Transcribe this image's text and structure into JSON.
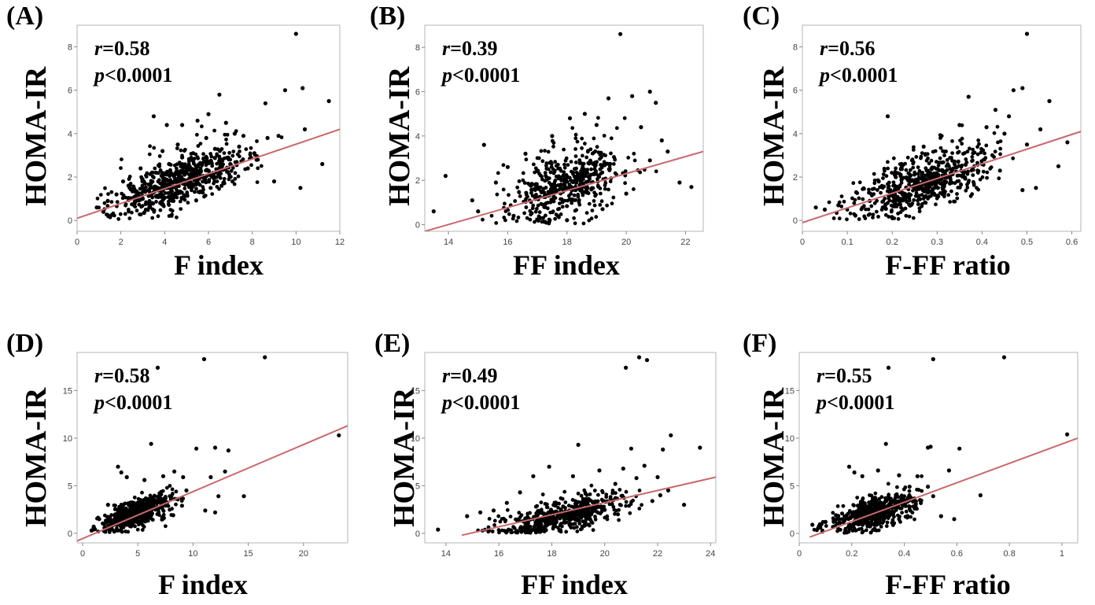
{
  "chart_data": [
    {
      "type": "scatter",
      "panel_label": "(A)",
      "xlabel": "F index",
      "ylabel": "HOMA-IR",
      "r_prefix": "r",
      "r_text": "=0.58",
      "p_prefix": "p",
      "p_text": "<0.0001",
      "xlim": [
        0,
        12
      ],
      "ylim": [
        -0.5,
        9.0
      ],
      "xticks": [
        0,
        2,
        4,
        6,
        8,
        10,
        12
      ],
      "yticks": [
        0,
        2,
        4,
        6,
        8
      ],
      "trend": {
        "x": [
          0,
          12
        ],
        "y": [
          0.1,
          4.2
        ]
      },
      "points": [
        [
          10.0,
          8.6
        ],
        [
          3.5,
          4.8
        ],
        [
          9.5,
          6.0
        ],
        [
          10.3,
          6.1
        ],
        [
          11.5,
          5.5
        ],
        [
          6.5,
          5.8
        ],
        [
          8.6,
          5.4
        ],
        [
          9.2,
          3.9
        ],
        [
          10.4,
          4.2
        ],
        [
          9.0,
          1.8
        ],
        [
          10.2,
          1.5
        ],
        [
          11.2,
          2.6
        ],
        [
          7.6,
          3.9
        ],
        [
          8.7,
          3.8
        ],
        [
          6.0,
          4.9
        ],
        [
          5.5,
          4.6
        ],
        [
          4.8,
          4.4
        ],
        [
          4.1,
          4.4
        ],
        [
          6.8,
          4.5
        ],
        [
          7.2,
          4.0
        ],
        [
          8.2,
          2.8
        ],
        [
          7.8,
          2.4
        ],
        [
          5.9,
          3.8
        ],
        [
          4.6,
          3.5
        ],
        [
          3.9,
          3.2
        ],
        [
          2.9,
          2.4
        ],
        [
          2.1,
          1.8
        ],
        [
          1.4,
          0.9
        ],
        [
          0.9,
          0.6
        ],
        [
          1.2,
          0.4
        ],
        [
          1.8,
          1.2
        ],
        [
          2.4,
          1.5
        ],
        [
          3.1,
          1.7
        ],
        [
          3.6,
          2.2
        ],
        [
          4.2,
          2.6
        ],
        [
          4.8,
          2.9
        ],
        [
          5.3,
          3.1
        ],
        [
          5.8,
          2.7
        ],
        [
          6.3,
          3.3
        ],
        [
          6.9,
          2.9
        ],
        [
          7.4,
          3.4
        ],
        [
          8.1,
          3.1
        ],
        [
          3.3,
          0.6
        ],
        [
          3.8,
          0.8
        ],
        [
          4.4,
          0.9
        ],
        [
          4.9,
          1.1
        ],
        [
          5.6,
          1.3
        ],
        [
          6.1,
          1.5
        ],
        [
          6.6,
          1.6
        ],
        [
          7.1,
          1.8
        ],
        [
          2.6,
          0.7
        ],
        [
          3.0,
          1.0
        ],
        [
          3.5,
          1.3
        ],
        [
          4.0,
          1.6
        ],
        [
          4.5,
          1.9
        ],
        [
          5.0,
          2.2
        ],
        [
          5.5,
          2.0
        ],
        [
          6.0,
          2.3
        ],
        [
          6.5,
          2.1
        ],
        [
          7.0,
          2.6
        ]
      ],
      "cloud": {
        "seed": 11,
        "n": 600,
        "xmean": 4.7,
        "xsd": 1.5,
        "xmin": 0.6,
        "xmax": 9.5,
        "slope": 0.35,
        "intercept": 0.2,
        "ysd": 0.7,
        "ymin": 0.05
      }
    },
    {
      "type": "scatter",
      "panel_label": "(B)",
      "xlabel": "FF index",
      "ylabel": "HOMA-IR",
      "r_prefix": "r",
      "r_text": "=0.39",
      "p_prefix": "p",
      "p_text": "<0.0001",
      "xlim": [
        13.2,
        22.6
      ],
      "ylim": [
        -0.3,
        9.0
      ],
      "xticks": [
        14,
        16,
        18,
        20,
        22
      ],
      "yticks": [
        0,
        2,
        4,
        6,
        8
      ],
      "trend": {
        "x": [
          13.2,
          22.6
        ],
        "y": [
          -0.3,
          3.3
        ]
      },
      "points": [
        [
          19.8,
          8.6
        ],
        [
          20.8,
          6.0
        ],
        [
          20.2,
          5.8
        ],
        [
          19.4,
          5.7
        ],
        [
          21.0,
          5.5
        ],
        [
          18.6,
          5.0
        ],
        [
          18.1,
          4.8
        ],
        [
          15.2,
          3.6
        ],
        [
          13.9,
          2.2
        ],
        [
          13.5,
          0.6
        ],
        [
          22.2,
          1.7
        ],
        [
          21.8,
          1.9
        ],
        [
          20.5,
          4.4
        ],
        [
          21.2,
          3.8
        ],
        [
          19.0,
          4.5
        ],
        [
          17.5,
          4.0
        ],
        [
          16.6,
          3.2
        ],
        [
          16.0,
          2.6
        ],
        [
          15.6,
          1.9
        ],
        [
          14.8,
          1.1
        ],
        [
          15.0,
          0.6
        ],
        [
          16.2,
          0.4
        ],
        [
          17.1,
          0.3
        ],
        [
          18.0,
          0.2
        ],
        [
          19.2,
          0.7
        ],
        [
          20.0,
          1.4
        ],
        [
          20.8,
          2.9
        ],
        [
          21.4,
          3.3
        ]
      ],
      "cloud": {
        "seed": 23,
        "n": 500,
        "xmean": 18.0,
        "xsd": 0.95,
        "xmin": 15.0,
        "xmax": 21.5,
        "slope": 0.38,
        "intercept": -5.0,
        "ysd": 0.85,
        "ymin": 0.05
      }
    },
    {
      "type": "scatter",
      "panel_label": "(C)",
      "xlabel": "F-FF ratio",
      "ylabel": "HOMA-IR",
      "r_prefix": "r",
      "r_text": "=0.56",
      "p_prefix": "p",
      "p_text": "<0.0001",
      "xlim": [
        0,
        0.62
      ],
      "ylim": [
        -0.5,
        9.0
      ],
      "xticks": [
        0,
        0.1,
        0.2,
        0.3,
        0.4,
        0.5,
        0.6
      ],
      "yticks": [
        0,
        2,
        4,
        6,
        8
      ],
      "trend": {
        "x": [
          0,
          0.62
        ],
        "y": [
          -0.1,
          4.1
        ]
      },
      "points": [
        [
          0.5,
          8.6
        ],
        [
          0.47,
          6.0
        ],
        [
          0.49,
          6.1
        ],
        [
          0.55,
          5.5
        ],
        [
          0.59,
          3.6
        ],
        [
          0.57,
          2.5
        ],
        [
          0.19,
          4.8
        ],
        [
          0.37,
          5.7
        ],
        [
          0.43,
          5.1
        ],
        [
          0.46,
          4.8
        ],
        [
          0.5,
          3.5
        ],
        [
          0.52,
          1.5
        ],
        [
          0.49,
          1.4
        ],
        [
          0.53,
          4.2
        ],
        [
          0.45,
          4.0
        ],
        [
          0.41,
          4.3
        ],
        [
          0.03,
          0.6
        ],
        [
          0.05,
          0.5
        ],
        [
          0.08,
          0.7
        ],
        [
          0.12,
          1.3
        ],
        [
          0.15,
          0.9
        ],
        [
          0.17,
          1.8
        ],
        [
          0.22,
          2.4
        ],
        [
          0.27,
          3.4
        ],
        [
          0.31,
          3.9
        ],
        [
          0.35,
          4.4
        ],
        [
          0.38,
          3.1
        ],
        [
          0.4,
          2.6
        ],
        [
          0.44,
          2.3
        ]
      ],
      "cloud": {
        "seed": 37,
        "n": 600,
        "xmean": 0.27,
        "xsd": 0.075,
        "xmin": 0.04,
        "xmax": 0.47,
        "slope": 6.8,
        "intercept": -0.1,
        "ysd": 0.75,
        "ymin": 0.05
      }
    },
    {
      "type": "scatter",
      "panel_label": "(D)",
      "xlabel": "F index",
      "ylabel": "HOMA-IR",
      "r_prefix": "r",
      "r_text": "=0.58",
      "p_prefix": "p",
      "p_text": "<0.0001",
      "xlim": [
        -0.5,
        24
      ],
      "ylim": [
        -1.0,
        19.0
      ],
      "xticks": [
        0,
        5,
        10,
        15,
        20
      ],
      "yticks": [
        0,
        5,
        10,
        15
      ],
      "trend": {
        "x": [
          -0.5,
          24
        ],
        "y": [
          -0.8,
          11.3
        ]
      },
      "points": [
        [
          16.5,
          18.5
        ],
        [
          11.0,
          18.3
        ],
        [
          6.8,
          17.4
        ],
        [
          23.2,
          10.3
        ],
        [
          6.2,
          9.4
        ],
        [
          10.3,
          8.9
        ],
        [
          12.0,
          9.0
        ],
        [
          13.2,
          8.7
        ],
        [
          12.9,
          6.5
        ],
        [
          11.6,
          5.9
        ],
        [
          14.6,
          3.9
        ],
        [
          12.3,
          3.9
        ],
        [
          11.1,
          2.4
        ],
        [
          12.0,
          2.2
        ],
        [
          3.2,
          7.0
        ],
        [
          3.5,
          6.4
        ],
        [
          4.0,
          5.9
        ],
        [
          5.6,
          5.6
        ],
        [
          8.3,
          6.5
        ],
        [
          9.1,
          5.9
        ],
        [
          7.3,
          6.0
        ],
        [
          9.4,
          4.5
        ],
        [
          8.6,
          3.6
        ],
        [
          2.3,
          3.0
        ],
        [
          1.5,
          1.5
        ],
        [
          1.0,
          0.7
        ],
        [
          0.8,
          0.3
        ],
        [
          2.0,
          0.6
        ],
        [
          9.0,
          2.9
        ],
        [
          8.2,
          1.9
        ]
      ],
      "cloud": {
        "seed": 41,
        "n": 520,
        "xmean": 4.8,
        "xsd": 1.6,
        "xmin": 0.6,
        "xmax": 9.5,
        "slope": 0.38,
        "intercept": 0.3,
        "ysd": 0.9,
        "ymin": 0.05
      }
    },
    {
      "type": "scatter",
      "panel_label": "(E)",
      "xlabel": "FF index",
      "ylabel": "HOMA-IR",
      "r_prefix": "r",
      "r_text": "=0.49",
      "p_prefix": "p",
      "p_text": "<0.0001",
      "xlim": [
        13.2,
        24.2
      ],
      "ylim": [
        -1.0,
        19.0
      ],
      "xticks": [
        14,
        16,
        18,
        20,
        22,
        24
      ],
      "yticks": [
        0,
        5,
        10,
        15
      ],
      "trend": {
        "x": [
          14.6,
          24.2
        ],
        "y": [
          -0.2,
          5.9
        ]
      },
      "points": [
        [
          21.3,
          18.5
        ],
        [
          21.6,
          18.2
        ],
        [
          20.8,
          17.4
        ],
        [
          22.5,
          10.3
        ],
        [
          23.6,
          9.0
        ],
        [
          22.2,
          8.8
        ],
        [
          21.0,
          8.9
        ],
        [
          19.0,
          9.3
        ],
        [
          21.5,
          7.1
        ],
        [
          20.7,
          6.8
        ],
        [
          21.2,
          5.8
        ],
        [
          22.0,
          5.9
        ],
        [
          22.4,
          4.5
        ],
        [
          22.1,
          4.0
        ],
        [
          23.0,
          3.0
        ],
        [
          17.9,
          7.0
        ],
        [
          17.3,
          6.0
        ],
        [
          16.8,
          4.3
        ],
        [
          18.8,
          6.0
        ],
        [
          19.8,
          6.6
        ],
        [
          20.4,
          5.2
        ],
        [
          13.7,
          0.4
        ],
        [
          14.8,
          1.8
        ],
        [
          15.3,
          2.2
        ],
        [
          15.8,
          2.4
        ],
        [
          16.3,
          3.2
        ],
        [
          19.5,
          1.2
        ],
        [
          20.5,
          2.0
        ],
        [
          21.8,
          3.4
        ]
      ],
      "cloud": {
        "seed": 53,
        "n": 520,
        "xmean": 18.4,
        "xsd": 1.2,
        "xmin": 15.0,
        "xmax": 21.5,
        "slope": 0.55,
        "intercept": -8.2,
        "ysd": 1.0,
        "ymin": 0.05
      }
    },
    {
      "type": "scatter",
      "panel_label": "(F)",
      "xlabel": "F-FF ratio",
      "ylabel": "HOMA-IR",
      "r_prefix": "r",
      "r_text": "=0.55",
      "p_prefix": "p",
      "p_text": "<0.0001",
      "xlim": [
        0,
        1.06
      ],
      "ylim": [
        -1.0,
        19.0
      ],
      "xticks": [
        0,
        0.2,
        0.4,
        0.6,
        0.8,
        1
      ],
      "yticks": [
        0,
        5,
        10,
        15
      ],
      "trend": {
        "x": [
          0.04,
          1.06
        ],
        "y": [
          -0.4,
          10.0
        ]
      },
      "points": [
        [
          0.78,
          18.5
        ],
        [
          0.51,
          18.3
        ],
        [
          0.34,
          17.4
        ],
        [
          1.02,
          10.4
        ],
        [
          0.33,
          9.4
        ],
        [
          0.49,
          9.0
        ],
        [
          0.5,
          9.1
        ],
        [
          0.61,
          8.9
        ],
        [
          0.57,
          6.6
        ],
        [
          0.69,
          4.0
        ],
        [
          0.59,
          1.5
        ],
        [
          0.54,
          1.8
        ],
        [
          0.51,
          3.9
        ],
        [
          0.49,
          4.9
        ],
        [
          0.19,
          7.0
        ],
        [
          0.21,
          6.4
        ],
        [
          0.24,
          6.0
        ],
        [
          0.3,
          6.6
        ],
        [
          0.38,
          6.1
        ],
        [
          0.45,
          6.0
        ],
        [
          0.42,
          4.9
        ],
        [
          0.05,
          0.9
        ],
        [
          0.08,
          0.6
        ],
        [
          0.1,
          1.2
        ],
        [
          0.14,
          1.9
        ],
        [
          0.46,
          3.5
        ],
        [
          0.44,
          2.6
        ]
      ],
      "cloud": {
        "seed": 67,
        "n": 520,
        "xmean": 0.28,
        "xsd": 0.08,
        "xmin": 0.05,
        "xmax": 0.47,
        "slope": 7.5,
        "intercept": -0.05,
        "ysd": 0.95,
        "ymin": 0.05
      }
    }
  ]
}
